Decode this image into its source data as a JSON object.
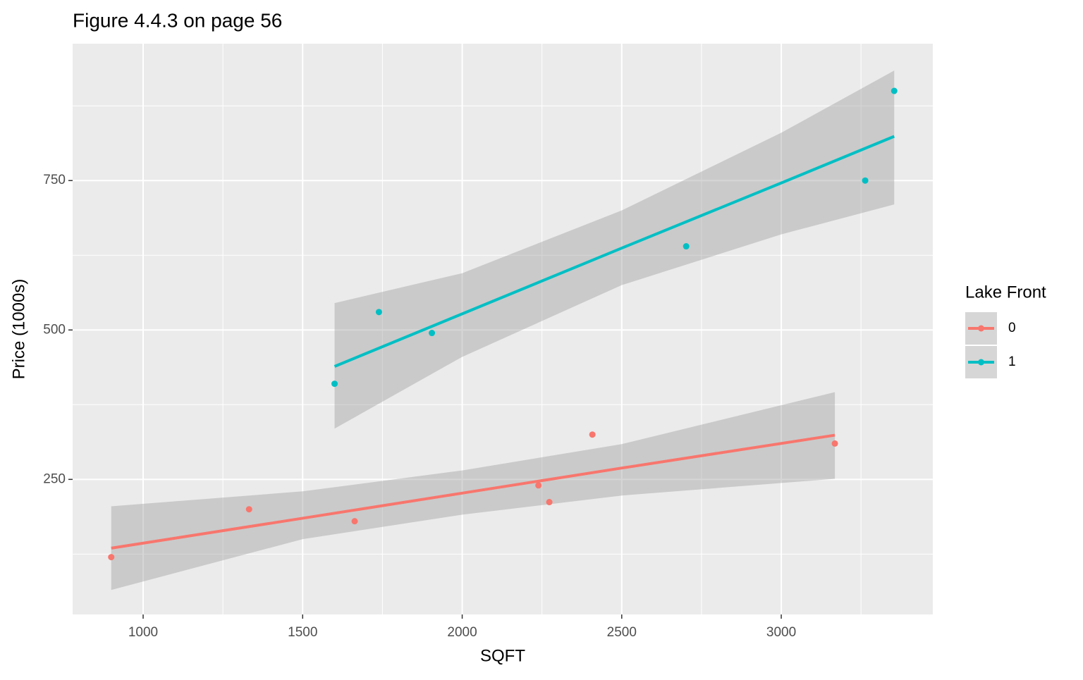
{
  "chart_data": {
    "type": "scatter",
    "title": "Figure 4.4.3 on page 56",
    "x_label": "SQFT",
    "y_label": "Price (1000s)",
    "xlim": [
      779,
      3475
    ],
    "ylim": [
      24,
      979
    ],
    "xticks": [
      1000,
      1500,
      2000,
      2500,
      3000
    ],
    "yticks": [
      250,
      500,
      750
    ],
    "xminor": [
      1250,
      1750,
      2250,
      2750,
      3250
    ],
    "yminor": [
      125,
      375,
      625,
      875
    ],
    "grid": true,
    "legend_title": "Lake Front",
    "legend_position": "right",
    "series": [
      {
        "name": "0",
        "color": "#F8766D",
        "x": [
          900,
          1332,
          1663,
          2239,
          2273,
          2408,
          3168
        ],
        "y": [
          120,
          200,
          180,
          240,
          212,
          325,
          310
        ],
        "fit": {
          "x": [
            900,
            1500,
            2000,
            2500,
            3168
          ],
          "y": [
            135,
            185,
            227,
            269,
            324
          ],
          "lower": [
            65,
            150,
            191,
            223,
            251
          ],
          "upper": [
            205,
            230,
            265,
            309,
            396
          ]
        }
      },
      {
        "name": "1",
        "color": "#00BFC4",
        "x": [
          1600,
          1739,
          1905,
          2702,
          3263,
          3354
        ],
        "y": [
          410,
          530,
          495,
          640,
          750,
          900
        ],
        "fit": {
          "x": [
            1600,
            2000,
            2500,
            3000,
            3354
          ],
          "y": [
            439,
            527,
            637,
            746,
            824
          ],
          "lower": [
            335,
            455,
            575,
            660,
            710
          ],
          "upper": [
            545,
            595,
            700,
            830,
            934
          ]
        }
      }
    ]
  }
}
